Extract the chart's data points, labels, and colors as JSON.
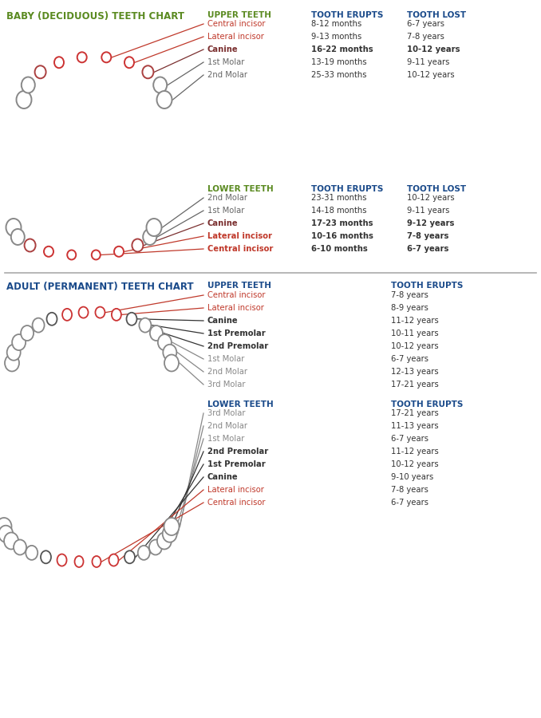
{
  "title_baby": "BABY (DECIDUOUS) TEETH CHART",
  "title_adult": "ADULT (PERMANENT) TEETH CHART",
  "col_upper": "UPPER TEETH",
  "col_lower": "LOWER TEETH",
  "col_erupts": "TOOTH ERUPTS",
  "col_lost": "TOOTH LOST",
  "baby_upper": {
    "teeth": [
      "Central incisor",
      "Lateral incisor",
      "Canine",
      "1st Molar",
      "2nd Molar"
    ],
    "erupts": [
      "8-12 months",
      "9-13 months",
      "16-22 months",
      "13-19 months",
      "25-33 months"
    ],
    "lost": [
      "6-7 years",
      "7-8 years",
      "10-12 years",
      "9-11 years",
      "10-12 years"
    ],
    "colors": [
      "#c0392b",
      "#c0392b",
      "#7b3030",
      "#666666",
      "#666666"
    ],
    "bold": [
      false,
      false,
      false,
      false,
      false
    ]
  },
  "baby_lower": {
    "teeth": [
      "2nd Molar",
      "1st Molar",
      "Canine",
      "Lateral incisor",
      "Central incisor"
    ],
    "erupts": [
      "23-31 months",
      "14-18 months",
      "17-23 months",
      "10-16 months",
      "6-10 months"
    ],
    "lost": [
      "10-12 years",
      "9-11 years",
      "9-12 years",
      "7-8 years",
      "6-7 years"
    ],
    "colors": [
      "#666666",
      "#666666",
      "#7b3030",
      "#c0392b",
      "#c0392b"
    ],
    "bold": [
      false,
      false,
      true,
      true,
      true
    ]
  },
  "adult_upper": {
    "teeth": [
      "Central incisor",
      "Lateral incisor",
      "Canine",
      "1st Premolar",
      "2nd Premolar",
      "1st Molar",
      "2nd Molar",
      "3rd Molar"
    ],
    "erupts": [
      "7-8 years",
      "8-9 years",
      "11-12 years",
      "10-11 years",
      "10-12 years",
      "6-7 years",
      "12-13 years",
      "17-21 years"
    ],
    "colors": [
      "#c0392b",
      "#c0392b",
      "#333333",
      "#333333",
      "#333333",
      "#888888",
      "#888888",
      "#888888"
    ],
    "bold": [
      false,
      false,
      false,
      false,
      false,
      false,
      false,
      false
    ]
  },
  "adult_lower": {
    "teeth": [
      "3rd Molar",
      "2nd Molar",
      "1st Molar",
      "2nd Premolar",
      "1st Premolar",
      "Canine",
      "Lateral incisor",
      "Central incisor"
    ],
    "erupts": [
      "17-21 years",
      "11-13 years",
      "6-7 years",
      "11-12 years",
      "10-12 years",
      "9-10 years",
      "7-8 years",
      "6-7 years"
    ],
    "colors": [
      "#888888",
      "#888888",
      "#888888",
      "#333333",
      "#333333",
      "#333333",
      "#c0392b",
      "#c0392b"
    ],
    "bold": [
      false,
      false,
      false,
      true,
      true,
      true,
      false,
      false
    ]
  },
  "color_title_baby": "#5a8a20",
  "color_title_adult": "#1a4a8a",
  "color_header_green": "#5a8a20",
  "color_header_blue": "#1a4a8a",
  "color_erupts": "#1a4a8a",
  "color_lost": "#1a4a8a",
  "color_text": "#333333",
  "color_bg": "#ffffff",
  "divider_color": "#aaaaaa"
}
